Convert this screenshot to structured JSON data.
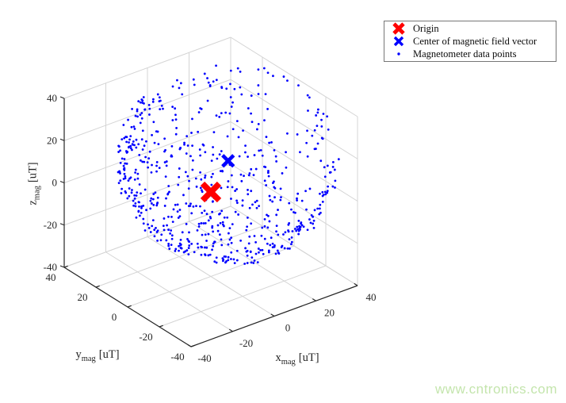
{
  "watermark": {
    "text": "www.cntronics.com",
    "color": "#c4e5ad"
  },
  "legend": {
    "entries": [
      {
        "label": "Origin",
        "marker": "x-bold",
        "color": "#ff0000"
      },
      {
        "label": "Center of magnetic field vector",
        "marker": "x",
        "color": "#0000ff"
      },
      {
        "label": "Magnetometer data points",
        "marker": "dot",
        "color": "#0000ff"
      }
    ]
  },
  "chart_data": {
    "type": "scatter",
    "projection": "3d",
    "title": "",
    "grid": true,
    "colors": {
      "grid": "#d4d4d4",
      "axis": "#262626",
      "tick_label": "#262626"
    },
    "axes": {
      "x": {
        "label": "x",
        "sub": "mag",
        "unit": "[uT]",
        "lim": [
          -40,
          40
        ],
        "ticks": [
          -40,
          -20,
          0,
          20,
          40
        ]
      },
      "y": {
        "label": "y",
        "sub": "mag",
        "unit": "[uT]",
        "lim": [
          -40,
          40
        ],
        "ticks": [
          40,
          20,
          0,
          -20,
          -40
        ]
      },
      "z": {
        "label": "z",
        "sub": "mag",
        "unit": "[uT]",
        "lim": [
          -40,
          40
        ],
        "ticks": [
          -40,
          -20,
          0,
          20,
          40
        ]
      }
    },
    "series": [
      {
        "name": "Magnetometer data points",
        "marker": "dot",
        "color": "#0000ff",
        "clip_to_axes": true,
        "generate": {
          "shape": "sphere-shell",
          "center": [
            6,
            -3,
            14
          ],
          "radius": 41,
          "jitter": 2,
          "count": 950,
          "seed": 1337
        }
      },
      {
        "name": "Origin",
        "marker": "x-bold",
        "color": "#ff0000",
        "points": [
          [
            0,
            0,
            0
          ]
        ]
      },
      {
        "name": "Center of magnetic field vector",
        "marker": "x",
        "color": "#0000ff",
        "points": [
          [
            6,
            -3,
            14
          ]
        ]
      }
    ]
  }
}
